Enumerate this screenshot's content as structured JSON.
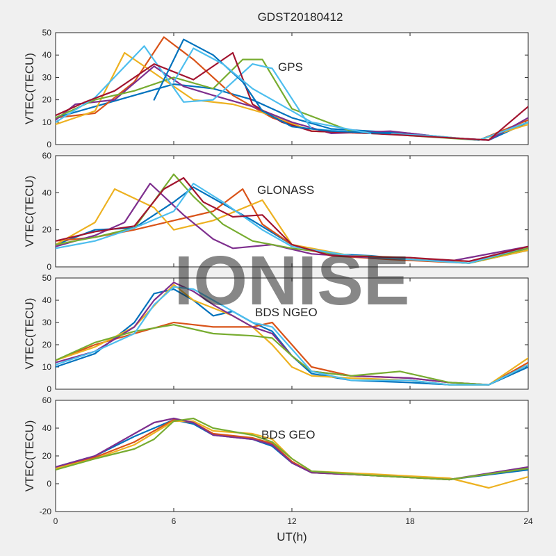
{
  "title": "GDST20180412",
  "watermark": "IONISE",
  "xlabel": "UT(h)",
  "x_ticks": [
    0,
    6,
    12,
    18,
    24
  ],
  "palette": [
    "#0072BD",
    "#D95319",
    "#EDB120",
    "#7E2F8E",
    "#77AC30",
    "#4DBEEE",
    "#A2142F"
  ],
  "chart_data": [
    {
      "type": "line",
      "annotation": "GPS",
      "ylabel": "VTEC(TECU)",
      "xlim": [
        0,
        24
      ],
      "ylim": [
        0,
        50
      ],
      "yticks": [
        0,
        10,
        20,
        30,
        40,
        50
      ],
      "series": [
        {
          "x": [
            0,
            2,
            4,
            6,
            8,
            10,
            12,
            14,
            16,
            18,
            20,
            22,
            24
          ],
          "y": [
            12,
            17,
            22,
            27,
            25,
            20,
            12,
            7,
            6,
            5,
            3,
            2,
            10
          ],
          "color": "#0072BD"
        },
        {
          "x": [
            0,
            2,
            4,
            5.5,
            7,
            9,
            11,
            13,
            16,
            19,
            21.5,
            24
          ],
          "y": [
            12,
            14,
            28,
            48,
            38,
            22,
            12,
            6,
            5,
            4,
            2,
            11
          ],
          "color": "#D95319"
        },
        {
          "x": [
            0,
            2,
            3.5,
            5,
            7,
            9,
            11,
            13,
            16,
            19,
            21.5,
            24
          ],
          "y": [
            9,
            15,
            41,
            32,
            20,
            18,
            13,
            6,
            5,
            4,
            2,
            9
          ],
          "color": "#EDB120"
        },
        {
          "x": [
            0,
            1,
            3,
            5,
            6.5,
            8,
            10,
            12,
            14,
            17,
            20,
            22,
            24
          ],
          "y": [
            11,
            18,
            20,
            35,
            26,
            22,
            17,
            10,
            5,
            6,
            3,
            2,
            12
          ],
          "color": "#7E2F8E"
        },
        {
          "x": [
            0,
            2,
            4,
            6,
            8,
            9.5,
            10.5,
            12,
            15,
            18,
            21.5,
            24
          ],
          "y": [
            12,
            20,
            24,
            30,
            25,
            38,
            38,
            16,
            6,
            4,
            2,
            10
          ],
          "color": "#77AC30"
        },
        {
          "x": [
            0,
            2,
            4.5,
            6.5,
            8,
            10,
            11,
            13,
            16,
            19,
            21.5,
            24
          ],
          "y": [
            10,
            21,
            44,
            19,
            20,
            36,
            34,
            7,
            5,
            4,
            2,
            10
          ],
          "color": "#4DBEEE"
        },
        {
          "x": [
            0,
            1.5,
            3,
            5,
            7,
            9,
            10,
            11.5,
            13,
            16,
            20,
            22,
            24
          ],
          "y": [
            13,
            19,
            24,
            36,
            29,
            41,
            18,
            10,
            6,
            5,
            3,
            2,
            17
          ],
          "color": "#A2142F"
        },
        {
          "x": [
            5,
            6.5,
            8,
            9.5,
            10.5,
            12,
            14,
            17
          ],
          "y": [
            20,
            47,
            40,
            28,
            15,
            8,
            6,
            5
          ],
          "color": "#0072BD"
        },
        {
          "x": [
            6,
            7,
            8.5,
            10,
            11,
            13,
            16
          ],
          "y": [
            28,
            43,
            36,
            25,
            20,
            10,
            5
          ],
          "color": "#4DBEEE"
        }
      ]
    },
    {
      "type": "line",
      "annotation": "GLONASS",
      "ylabel": "VTEC(TECU)",
      "xlim": [
        0,
        24
      ],
      "ylim": [
        0,
        60
      ],
      "yticks": [
        0,
        20,
        40,
        60
      ],
      "series": [
        {
          "x": [
            0,
            2,
            4,
            6,
            7,
            8,
            10,
            12,
            14,
            16,
            18,
            21,
            24
          ],
          "y": [
            12,
            20,
            21,
            35,
            43,
            37,
            25,
            12,
            7,
            6,
            4,
            2,
            9
          ],
          "color": "#0072BD"
        },
        {
          "x": [
            0,
            2,
            4,
            6,
            8,
            9.5,
            10.5,
            12,
            14,
            17,
            21,
            24
          ],
          "y": [
            14,
            16,
            20,
            25,
            30,
            42,
            23,
            12,
            6,
            4,
            2,
            10
          ],
          "color": "#D95319"
        },
        {
          "x": [
            0,
            2,
            3,
            5,
            6,
            8,
            10.5,
            12,
            15,
            18,
            21,
            24
          ],
          "y": [
            12,
            24,
            42,
            32,
            20,
            25,
            36,
            12,
            6,
            5,
            2,
            9
          ],
          "color": "#EDB120"
        },
        {
          "x": [
            0,
            2,
            3.5,
            4.8,
            6.5,
            8,
            9,
            11,
            13,
            16,
            20,
            24
          ],
          "y": [
            11,
            17,
            24,
            45,
            28,
            15,
            10,
            12,
            7,
            5,
            3,
            11
          ],
          "color": "#7E2F8E"
        },
        {
          "x": [
            0,
            2,
            4,
            6,
            7,
            8.5,
            10,
            12,
            15,
            18,
            21,
            24
          ],
          "y": [
            12,
            16,
            21,
            50,
            38,
            23,
            14,
            10,
            6,
            4,
            2,
            10
          ],
          "color": "#77AC30"
        },
        {
          "x": [
            0,
            2,
            4,
            6,
            7,
            8.5,
            10.5,
            12,
            15,
            18,
            21,
            24
          ],
          "y": [
            10,
            14,
            21,
            30,
            45,
            35,
            20,
            11,
            6,
            4,
            2,
            11
          ],
          "color": "#4DBEEE"
        },
        {
          "x": [
            0,
            2,
            4,
            5.5,
            6.5,
            7.5,
            9,
            10.5,
            12,
            14,
            18,
            21,
            24
          ],
          "y": [
            14,
            19,
            22,
            42,
            48,
            35,
            27,
            28,
            12,
            6,
            5,
            3,
            11
          ],
          "color": "#A2142F"
        }
      ]
    },
    {
      "type": "line",
      "annotation": "BDS NGEO",
      "ylabel": "VTEC(TECU)",
      "xlim": [
        0,
        24
      ],
      "ylim": [
        0,
        50
      ],
      "yticks": [
        0,
        10,
        20,
        30,
        40,
        50
      ],
      "series": [
        {
          "x": [
            0,
            2,
            4,
            5,
            6,
            7,
            8,
            9,
            10,
            11,
            12,
            13,
            15,
            18,
            20,
            22,
            24
          ],
          "y": [
            10,
            16,
            30,
            43,
            45,
            40,
            33,
            35,
            30,
            26,
            15,
            7,
            4,
            3,
            2,
            2,
            10
          ],
          "color": "#0072BD"
        },
        {
          "x": [
            0,
            2,
            4,
            6,
            8,
            10,
            11,
            12,
            13,
            15,
            18,
            20,
            22,
            24
          ],
          "y": [
            13,
            20,
            25,
            30,
            28,
            28,
            30,
            20,
            10,
            6,
            5,
            3,
            2,
            12
          ],
          "color": "#D95319"
        },
        {
          "x": [
            0,
            2,
            4,
            6,
            7,
            9,
            10,
            11,
            12,
            13,
            15,
            18,
            20,
            22,
            24
          ],
          "y": [
            13,
            19,
            28,
            47,
            40,
            33,
            28,
            20,
            10,
            6,
            5,
            4,
            2,
            2,
            14
          ],
          "color": "#EDB120"
        },
        {
          "x": [
            0,
            2,
            4,
            5,
            6,
            7,
            8,
            9,
            10,
            11,
            12,
            13,
            15,
            18,
            20,
            22,
            24
          ],
          "y": [
            12,
            17,
            28,
            40,
            48,
            44,
            38,
            33,
            28,
            25,
            15,
            8,
            6,
            5,
            3,
            2,
            11
          ],
          "color": "#7E2F8E"
        },
        {
          "x": [
            0,
            2,
            4,
            6,
            8,
            10,
            11,
            12,
            13,
            15,
            17.5,
            20,
            22,
            24
          ],
          "y": [
            13,
            21,
            26,
            29,
            25,
            24,
            23,
            15,
            8,
            6,
            8,
            3,
            2,
            11
          ],
          "color": "#77AC30"
        },
        {
          "x": [
            0,
            2,
            4,
            5,
            6,
            7,
            8,
            9,
            10,
            11,
            12,
            13,
            15,
            18,
            20,
            22,
            24
          ],
          "y": [
            11,
            17,
            25,
            38,
            46,
            45,
            40,
            35,
            30,
            28,
            18,
            8,
            4,
            4,
            2,
            2,
            11
          ],
          "color": "#4DBEEE"
        }
      ]
    },
    {
      "type": "line",
      "annotation": "BDS GEO",
      "ylabel": "VTEC(TECU)",
      "xlim": [
        0,
        24
      ],
      "ylim": [
        -20,
        60
      ],
      "yticks": [
        -20,
        0,
        20,
        40,
        60
      ],
      "series": [
        {
          "x": [
            0,
            2,
            4,
            6,
            7,
            8,
            10,
            11,
            12,
            13,
            16,
            20,
            24
          ],
          "y": [
            12,
            20,
            34,
            46,
            43,
            35,
            32,
            27,
            15,
            8,
            6,
            3,
            10
          ],
          "color": "#0072BD"
        },
        {
          "x": [
            0,
            2,
            4,
            6,
            7,
            8,
            10,
            11,
            12,
            13,
            16,
            20,
            24
          ],
          "y": [
            12,
            19,
            30,
            46,
            44,
            36,
            33,
            29,
            16,
            8,
            6,
            3,
            11
          ],
          "color": "#D95319"
        },
        {
          "x": [
            0,
            2,
            4,
            6,
            7,
            8,
            10,
            11,
            12,
            13,
            16,
            20,
            22,
            24
          ],
          "y": [
            11,
            18,
            28,
            45,
            45,
            38,
            36,
            32,
            18,
            9,
            7,
            4,
            -3,
            5
          ],
          "color": "#EDB120"
        },
        {
          "x": [
            0,
            2,
            4,
            5,
            6,
            7,
            8,
            10,
            11,
            12,
            13,
            16,
            20,
            24
          ],
          "y": [
            12,
            20,
            36,
            44,
            47,
            44,
            35,
            32,
            28,
            15,
            8,
            6,
            3,
            12
          ],
          "color": "#7E2F8E"
        },
        {
          "x": [
            0,
            2,
            4,
            5,
            6,
            7,
            8,
            10,
            11,
            12,
            13,
            16,
            20,
            24
          ],
          "y": [
            10,
            18,
            25,
            32,
            45,
            47,
            40,
            35,
            30,
            18,
            9,
            6,
            3,
            11
          ],
          "color": "#77AC30"
        }
      ]
    }
  ]
}
